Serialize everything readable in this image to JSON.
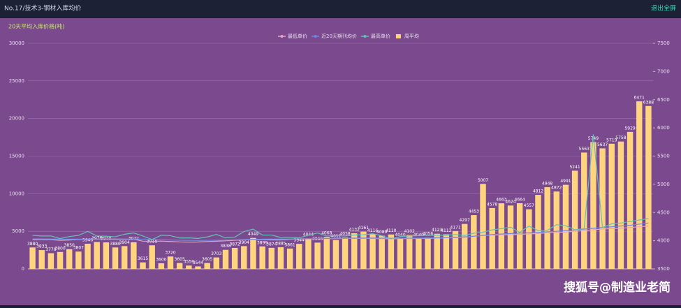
{
  "header": {
    "title": "No.17/技术3-钢材入库均价",
    "action": "退出全屏"
  },
  "watermark": "搜狐号@制造业老简",
  "chart_data": {
    "type": "bar",
    "title": "20天平均入库价格(吨)",
    "legend": "top",
    "categories": [
      null,
      null,
      null,
      null,
      null,
      null,
      null,
      null,
      null,
      null,
      null,
      null,
      null,
      null,
      null,
      null,
      null,
      null,
      null,
      null,
      null,
      null,
      null,
      null,
      null,
      null,
      null,
      null,
      null,
      null,
      null,
      null,
      null,
      null,
      null,
      null,
      null,
      null,
      null,
      null,
      null,
      null,
      null,
      null,
      null,
      null,
      null,
      null,
      null,
      null,
      null,
      null,
      null,
      null,
      null,
      null,
      null,
      null,
      null,
      null,
      null,
      null,
      null,
      null,
      null,
      null,
      null,
      null
    ],
    "ylim": [
      0,
      30000
    ],
    "yticks": [
      0,
      5000,
      10000,
      15000,
      20000,
      25000,
      30000
    ],
    "y2lim": [
      3500,
      7500
    ],
    "y2ticks": [
      3500,
      4000,
      4500,
      5000,
      5500,
      6000,
      6500,
      7000,
      7500
    ],
    "grid": true,
    "series": [
      {
        "name": "最低单价",
        "type": "line",
        "color": "#e6a6c0",
        "values": [
          3880,
          3885,
          3887,
          3799,
          3846,
          3905,
          3934,
          3955,
          3953,
          3939,
          3936,
          3954,
          3687,
          3663,
          3699,
          3645,
          3583,
          3558,
          3577,
          3642,
          3677,
          3732,
          3800,
          3864,
          3881,
          3886,
          3850,
          3857,
          3932,
          3961,
          3979,
          4015,
          4018,
          4022,
          4051,
          4055,
          4072,
          4037,
          4017,
          3988,
          4031,
          4029,
          4048,
          4041,
          4107,
          4123,
          4150,
          4200,
          4350,
          4450,
          4500,
          4520,
          4550,
          4600,
          4650,
          4700,
          4800,
          4850,
          4900,
          5000,
          5100,
          5200,
          5300,
          5350,
          5400,
          5500,
          5600,
          5700
        ]
      },
      {
        "name": "近20天期刊均价",
        "type": "line",
        "color": "#6f86e0",
        "values": [
          3990,
          3980,
          3970,
          3960,
          3950,
          3960,
          3980,
          4000,
          4010,
          4000,
          3990,
          3980,
          3950,
          3900,
          3870,
          3840,
          3810,
          3790,
          3780,
          3790,
          3810,
          3840,
          3870,
          3900,
          3930,
          3950,
          3960,
          3970,
          3990,
          4010,
          4030,
          4050,
          4060,
          4070,
          4080,
          4090,
          4100,
          4100,
          4090,
          4080,
          4080,
          4090,
          4100,
          4110,
          4130,
          4160,
          4200,
          4260,
          4340,
          4450,
          4560,
          4640,
          4700,
          4760,
          4800,
          4860,
          4930,
          5000,
          5080,
          5170,
          5290,
          5400,
          5500,
          5600,
          5700,
          5800,
          5950,
          6100
        ]
      },
      {
        "name": "最高单价",
        "type": "line",
        "color": "#63c2b6",
        "values": [
          4450,
          4380,
          4380,
          4030,
          4300,
          4450,
          4980,
          4380,
          4340,
          4268,
          4600,
          4780,
          4380,
          3900,
          4480,
          4420,
          4110,
          4120,
          4050,
          4250,
          4580,
          4120,
          4220,
          4960,
          5290,
          4500,
          4500,
          4170,
          4160,
          4130,
          4460,
          4780,
          4370,
          4420,
          4380,
          4500,
          4530,
          4680,
          4420,
          4000,
          4300,
          4390,
          4410,
          4460,
          4480,
          4470,
          4570,
          4450,
          4750,
          4880,
          5190,
          5350,
          5550,
          4860,
          5690,
          5090,
          5130,
          5880,
          5740,
          5200,
          5350,
          17900,
          5500,
          6000,
          6100,
          6300,
          6500,
          6700
        ]
      },
      {
        "name": "周平均",
        "type": "bar",
        "axis": "y2",
        "color": "#ffd47e",
        "values": [
          3880,
          3833,
          3778,
          3800,
          3850,
          3807,
          3946,
          3976,
          3970,
          3880,
          3904,
          3972,
          3615,
          3918,
          3600,
          3720,
          3605,
          3559,
          3544,
          3605,
          3703,
          3838,
          3872,
          3904,
          4049,
          3899,
          3874,
          3885,
          3861,
          3944,
          4044,
          3966,
          4068,
          4011,
          4058,
          4132,
          4161,
          4116,
          4089,
          4110,
          4040,
          4102,
          4040,
          4056,
          4123,
          4113,
          4171,
          4297,
          4453,
          5007,
          4578,
          4663,
          4624,
          4664,
          4557,
          4812,
          4948,
          4872,
          4991,
          5241,
          5563,
          5749,
          5637,
          5719,
          5758,
          5929,
          6471,
          6388
        ]
      }
    ]
  }
}
